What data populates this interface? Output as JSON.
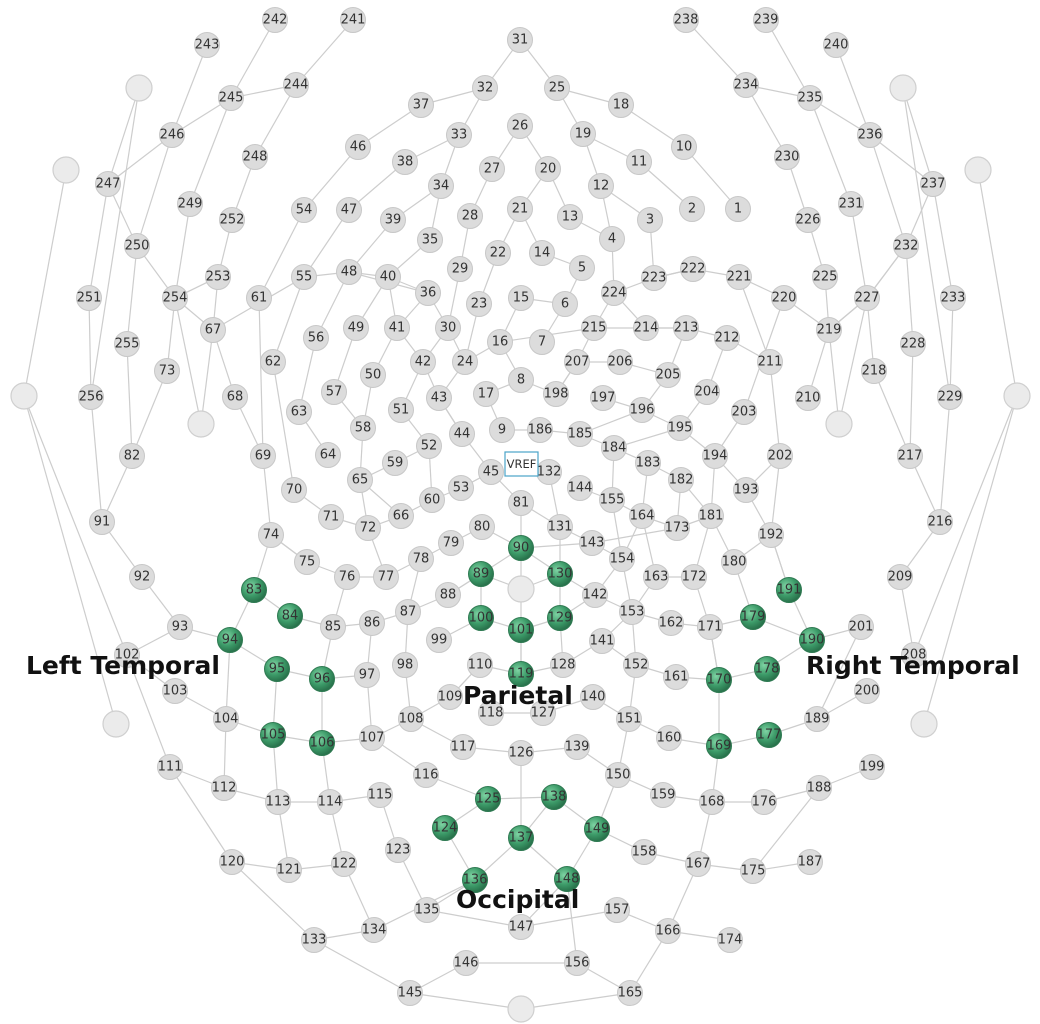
{
  "regions": {
    "left_temporal": "Left Temporal",
    "right_temporal": "Right Temporal",
    "parietal": "Parietal",
    "occipital": "Occipital"
  },
  "reference_label": "VREF",
  "colors": {
    "electrode": "#dcdcdc",
    "highlighted": "#3c9a68",
    "connection": "#cdcdcd",
    "reference": "#4aa3c8"
  },
  "electrode_labels": [
    "1",
    "2",
    "3",
    "4",
    "5",
    "6",
    "7",
    "8",
    "9",
    "10",
    "11",
    "12",
    "13",
    "14",
    "15",
    "16",
    "17",
    "18",
    "19",
    "20",
    "21",
    "22",
    "23",
    "24",
    "25",
    "26",
    "27",
    "28",
    "29",
    "30",
    "31",
    "32",
    "33",
    "34",
    "35",
    "36",
    "37",
    "38",
    "39",
    "40",
    "41",
    "42",
    "43",
    "44",
    "45",
    "46",
    "47",
    "48",
    "49",
    "50",
    "51",
    "52",
    "53",
    "54",
    "55",
    "56",
    "57",
    "58",
    "59",
    "60",
    "61",
    "62",
    "63",
    "64",
    "65",
    "66",
    "67",
    "68",
    "69",
    "70",
    "71",
    "72",
    "73",
    "74",
    "75",
    "76",
    "77",
    "78",
    "79",
    "80",
    "81",
    "82",
    "83",
    "84",
    "85",
    "86",
    "87",
    "88",
    "89",
    "90",
    "91",
    "92",
    "93",
    "94",
    "95",
    "96",
    "97",
    "98",
    "99",
    "100",
    "101",
    "102",
    "103",
    "104",
    "105",
    "106",
    "107",
    "108",
    "109",
    "110",
    "111",
    "112",
    "113",
    "114",
    "115",
    "116",
    "117",
    "118",
    "119",
    "120",
    "121",
    "122",
    "123",
    "124",
    "125",
    "126",
    "127",
    "128",
    "129",
    "130",
    "131",
    "132",
    "133",
    "134",
    "135",
    "136",
    "137",
    "138",
    "139",
    "140",
    "141",
    "142",
    "143",
    "144",
    "145",
    "146",
    "147",
    "148",
    "149",
    "150",
    "151",
    "152",
    "153",
    "154",
    "155",
    "156",
    "157",
    "158",
    "159",
    "160",
    "161",
    "162",
    "163",
    "164",
    "165",
    "166",
    "167",
    "168",
    "169",
    "170",
    "171",
    "172",
    "173",
    "174",
    "175",
    "176",
    "177",
    "178",
    "179",
    "180",
    "181",
    "182",
    "183",
    "184",
    "185",
    "186",
    "187",
    "188",
    "189",
    "190",
    "191",
    "192",
    "193",
    "194",
    "195",
    "196",
    "197",
    "198",
    "199",
    "200",
    "201",
    "202",
    "203",
    "204",
    "205",
    "206",
    "207",
    "208",
    "209",
    "210",
    "211",
    "212",
    "213",
    "214",
    "215",
    "216",
    "217",
    "218",
    "219",
    "220",
    "221",
    "222",
    "223",
    "224",
    "225",
    "226",
    "227",
    "228",
    "229",
    "230",
    "231",
    "232",
    "233",
    "234",
    "235",
    "236",
    "237",
    "238",
    "239",
    "240",
    "241",
    "242",
    "243",
    "244",
    "245",
    "246",
    "247",
    "248",
    "249",
    "250",
    "251",
    "252",
    "253",
    "254",
    "255",
    "256"
  ],
  "highlighted_electrodes": [
    "83",
    "84",
    "89",
    "90",
    "94",
    "95",
    "96",
    "100",
    "101",
    "105",
    "106",
    "119",
    "124",
    "125",
    "129",
    "130",
    "136",
    "137",
    "138",
    "148",
    "149",
    "169",
    "170",
    "177",
    "178",
    "179",
    "190",
    "191"
  ]
}
